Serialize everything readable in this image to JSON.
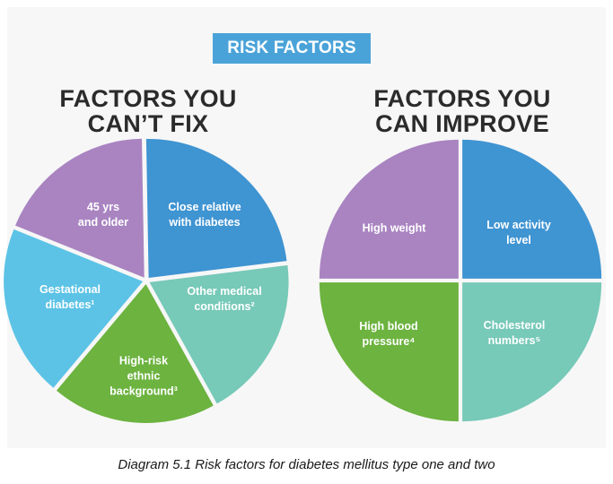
{
  "banner": "RISK FACTORS",
  "left": {
    "heading_line1": "FACTORS YOU",
    "heading_line2": "CAN’T FIX",
    "slices": [
      {
        "line1": "45 yrs",
        "line2": "and older",
        "line3": "",
        "color": "#3f94d2"
      },
      {
        "line1": "Close relative",
        "line2": "with diabetes",
        "line3": "",
        "color": "#77c9b8"
      },
      {
        "line1": "Other medical",
        "line2": "conditions²",
        "line3": "",
        "color": "#6cb33f"
      },
      {
        "line1": "High-risk",
        "line2": "ethnic",
        "line3": "background³",
        "color": "#5cc3e6"
      },
      {
        "line1": "Gestational",
        "line2": "diabetes¹",
        "line3": "",
        "color": "#a984c1"
      }
    ]
  },
  "right": {
    "heading_line1": "FACTORS YOU",
    "heading_line2": "CAN IMPROVE",
    "slices": [
      {
        "line1": "Low activity",
        "line2": "level",
        "color": "#3f94d2"
      },
      {
        "line1": "Cholesterol",
        "line2": "numbers⁵",
        "color": "#77c9b8"
      },
      {
        "line1": "High blood",
        "line2": "pressure⁴",
        "color": "#6cb33f"
      },
      {
        "line1": "High weight",
        "line2": "",
        "color": "#a984c1"
      }
    ]
  },
  "caption": "Diagram 5.1 Risk factors for diabetes mellitus type one and two"
}
